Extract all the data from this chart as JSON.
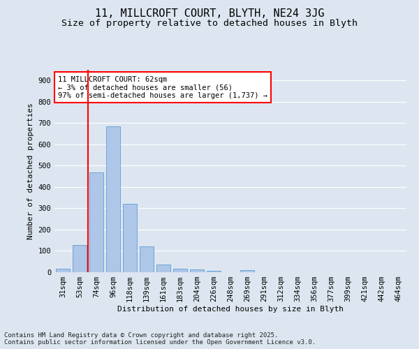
{
  "title_line1": "11, MILLCROFT COURT, BLYTH, NE24 3JG",
  "title_line2": "Size of property relative to detached houses in Blyth",
  "xlabel": "Distribution of detached houses by size in Blyth",
  "ylabel": "Number of detached properties",
  "bar_color": "#aec6e8",
  "bar_edge_color": "#5a9fd4",
  "categories": [
    "31sqm",
    "53sqm",
    "74sqm",
    "96sqm",
    "118sqm",
    "139sqm",
    "161sqm",
    "183sqm",
    "204sqm",
    "226sqm",
    "248sqm",
    "269sqm",
    "291sqm",
    "312sqm",
    "334sqm",
    "356sqm",
    "377sqm",
    "399sqm",
    "421sqm",
    "442sqm",
    "464sqm"
  ],
  "values": [
    18,
    128,
    468,
    685,
    320,
    122,
    35,
    15,
    12,
    8,
    0,
    10,
    0,
    0,
    0,
    0,
    0,
    0,
    0,
    0,
    0
  ],
  "vline_pos": 1.5,
  "annotation_text": "11 MILLCROFT COURT: 62sqm\n← 3% of detached houses are smaller (56)\n97% of semi-detached houses are larger (1,737) →",
  "annotation_box_color": "white",
  "annotation_border_color": "red",
  "vline_color": "red",
  "background_color": "#dde6f0",
  "plot_bg_color": "#dde6f0",
  "footer_line1": "Contains HM Land Registry data © Crown copyright and database right 2025.",
  "footer_line2": "Contains public sector information licensed under the Open Government Licence v3.0.",
  "ylim": [
    0,
    950
  ],
  "yticks": [
    0,
    100,
    200,
    300,
    400,
    500,
    600,
    700,
    800,
    900
  ],
  "grid_color": "#ffffff",
  "title_fontsize": 11,
  "subtitle_fontsize": 9.5,
  "axis_label_fontsize": 8,
  "tick_fontsize": 7.5,
  "annotation_fontsize": 7.5,
  "footer_fontsize": 6.5
}
